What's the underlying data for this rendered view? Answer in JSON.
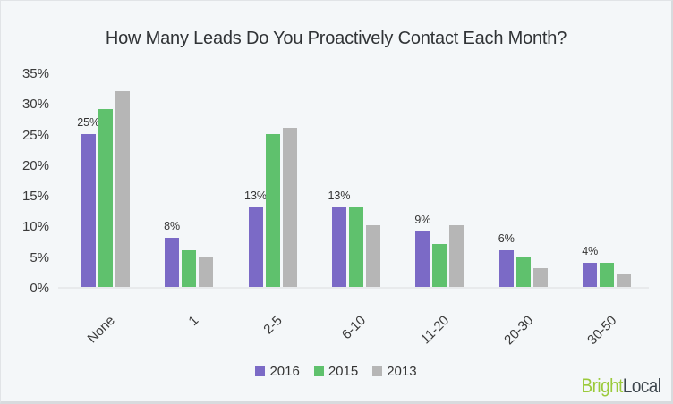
{
  "chart_data": {
    "type": "bar",
    "title": "How Many Leads Do You Proactively Contact Each Month?",
    "categories": [
      "None",
      "1",
      "2-5",
      "6-10",
      "11-20",
      "20-30",
      "30-50"
    ],
    "series": [
      {
        "name": "2016",
        "color": "#7B6AC6",
        "values": [
          25,
          8,
          13,
          13,
          9,
          6,
          4
        ],
        "data_labels": [
          "25%",
          "8%",
          "13%",
          "13%",
          "9%",
          "6%",
          "4%"
        ],
        "show_labels": true
      },
      {
        "name": "2015",
        "color": "#5FC16D",
        "values": [
          29,
          6,
          25,
          13,
          7,
          5,
          4
        ],
        "show_labels": false
      },
      {
        "name": "2013",
        "color": "#B6B6B6",
        "values": [
          32,
          5,
          26,
          10,
          10,
          3,
          2
        ],
        "show_labels": false
      }
    ],
    "xlabel": "",
    "ylabel": "",
    "ylim": [
      0,
      35
    ],
    "yticks": [
      0,
      5,
      10,
      15,
      20,
      25,
      30,
      35
    ],
    "ytick_labels": [
      "0%",
      "5%",
      "10%",
      "15%",
      "20%",
      "25%",
      "30%",
      "35%"
    ],
    "grid": false,
    "legend_position": "bottom-center"
  },
  "branding": {
    "name": "BrightLocal",
    "part1": "Bright",
    "part2": "Local",
    "part1_color": "#9BCA3B",
    "part2_color": "#3D464D"
  },
  "colors": {
    "background": "#F4F7F9",
    "border": "#D8DBDE",
    "axis_line": "#E8EAEC",
    "text": "#3A3A3A"
  }
}
